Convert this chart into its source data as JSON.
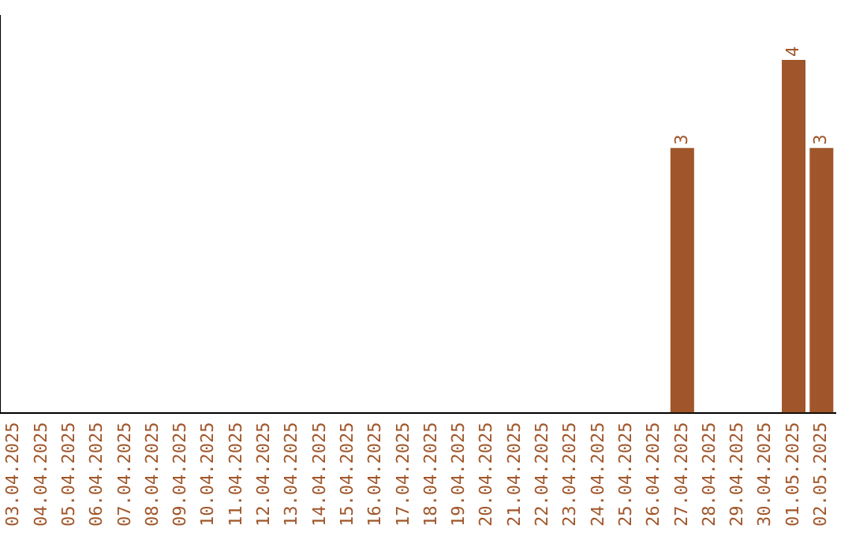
{
  "chart_data": {
    "type": "bar",
    "categories": [
      "03.04.2025",
      "04.04.2025",
      "05.04.2025",
      "06.04.2025",
      "07.04.2025",
      "08.04.2025",
      "09.04.2025",
      "10.04.2025",
      "11.04.2025",
      "12.04.2025",
      "13.04.2025",
      "14.04.2025",
      "15.04.2025",
      "16.04.2025",
      "17.04.2025",
      "18.04.2025",
      "19.04.2025",
      "20.04.2025",
      "21.04.2025",
      "22.04.2025",
      "23.04.2025",
      "24.04.2025",
      "25.04.2025",
      "26.04.2025",
      "27.04.2025",
      "28.04.2025",
      "29.04.2025",
      "30.04.2025",
      "01.05.2025",
      "02.05.2025"
    ],
    "values": [
      null,
      null,
      null,
      null,
      null,
      null,
      null,
      null,
      null,
      null,
      null,
      null,
      null,
      null,
      null,
      null,
      null,
      null,
      null,
      null,
      null,
      null,
      null,
      null,
      3,
      null,
      null,
      null,
      4,
      3
    ],
    "value_labels": [
      null,
      null,
      null,
      null,
      null,
      null,
      null,
      null,
      null,
      null,
      null,
      null,
      null,
      null,
      null,
      null,
      null,
      null,
      null,
      null,
      null,
      null,
      null,
      null,
      "3",
      null,
      null,
      null,
      "4",
      "3"
    ],
    "color": "#a0562a",
    "grid": false,
    "legend": false
  }
}
